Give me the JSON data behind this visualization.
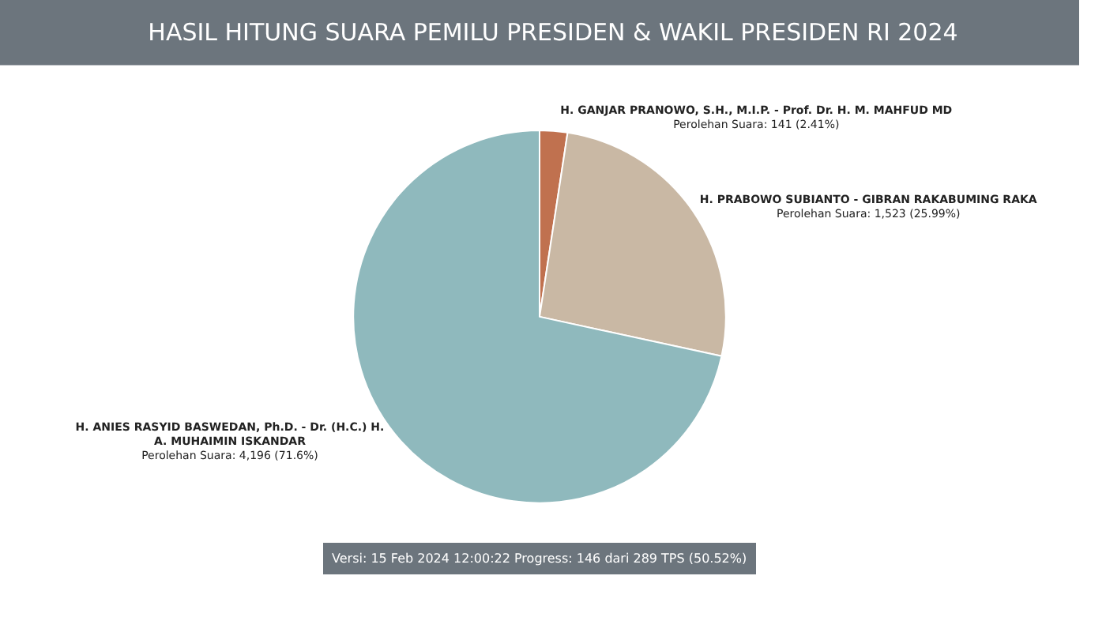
{
  "chart_data": {
    "type": "pie",
    "title": "HASIL HITUNG SUARA PEMILU PRESIDEN & WAKIL PRESIDEN RI 2024",
    "categories": [
      "H. GANJAR PRANOWO, S.H., M.I.P. - Prof. Dr. H. M. MAHFUD MD",
      "H. PRABOWO SUBIANTO - GIBRAN RAKABUMING RAKA",
      "H. ANIES RASYID BASWEDAN, Ph.D. - Dr. (H.C.) H.\nA. MUHAIMIN ISKANDAR"
    ],
    "values": [
      141,
      1523,
      4196
    ],
    "colors": [
      "#c0714f",
      "#c9b8a4",
      "#8fb9bd"
    ],
    "value_labels": [
      "Perolehan Suara: 141 (2.41%)",
      "Perolehan Suara: 1,523 (25.99%)",
      "Perolehan Suara: 4,196 (71.6%)"
    ],
    "annotations": [
      "Versi: 15 Feb 2024 12:00:22 Progress: 146 dari 289 TPS (50.52%)"
    ],
    "legend": false
  }
}
